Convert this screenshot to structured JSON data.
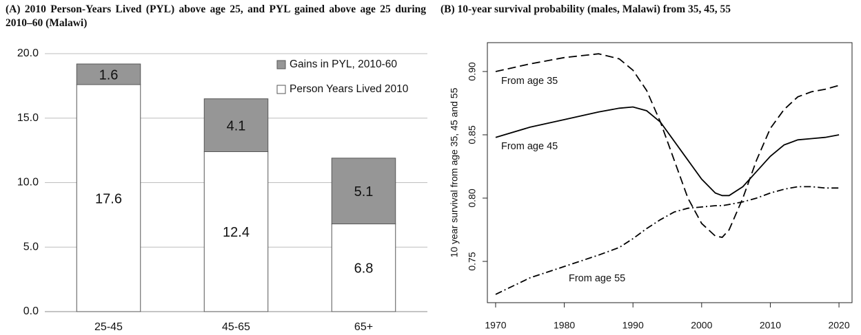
{
  "chart_data": [
    {
      "type": "stacked-bar",
      "title": "(A) 2010 Person-Years Lived (PYL) above age 25, and PYL gained above age 25 during 2010–60 (Malawi)",
      "categories": [
        "25-45",
        "45-65",
        "65+"
      ],
      "series": [
        {
          "name": "Person Years Lived 2010",
          "color": "#ffffff",
          "values": [
            17.6,
            12.4,
            6.8
          ]
        },
        {
          "name": "Gains in PYL, 2010-60",
          "color": "#969696",
          "values": [
            1.6,
            4.1,
            5.1
          ]
        }
      ],
      "ylim": [
        0,
        20
      ],
      "yticks": [
        {
          "value": 0,
          "label": "0.0"
        },
        {
          "value": 5,
          "label": "5.0"
        },
        {
          "value": 10,
          "label": "10.0"
        },
        {
          "value": 15,
          "label": "15.0"
        },
        {
          "value": 20,
          "label": "20.0"
        }
      ],
      "grid": true,
      "legend": "top-right"
    },
    {
      "type": "line",
      "title": "(B) 10-year survival probability (males, Malawi) from 35, 45, 55",
      "y_label": "10 year survival from age 35, 45 and 55",
      "x": [
        1970,
        1975,
        1980,
        1985,
        1988,
        1990,
        1992,
        1994,
        1996,
        1998,
        2000,
        2002,
        2003,
        2004,
        2006,
        2008,
        2010,
        2012,
        2014,
        2016,
        2018,
        2020
      ],
      "series": [
        {
          "name": "From age 35",
          "color": "#000000",
          "dash": "dashed",
          "values": [
            0.9,
            0.906,
            0.911,
            0.914,
            0.91,
            0.901,
            0.885,
            0.86,
            0.83,
            0.8,
            0.78,
            0.77,
            0.769,
            0.775,
            0.8,
            0.83,
            0.855,
            0.87,
            0.88,
            0.884,
            0.886,
            0.889
          ]
        },
        {
          "name": "From age 45",
          "color": "#000000",
          "dash": "solid",
          "values": [
            0.848,
            0.856,
            0.862,
            0.868,
            0.871,
            0.872,
            0.869,
            0.86,
            0.845,
            0.83,
            0.815,
            0.804,
            0.802,
            0.802,
            0.809,
            0.821,
            0.833,
            0.842,
            0.846,
            0.847,
            0.848,
            0.85
          ]
        },
        {
          "name": "From age 55",
          "color": "#000000",
          "dash": "dashdot",
          "values": [
            0.724,
            0.737,
            0.746,
            0.755,
            0.761,
            0.768,
            0.776,
            0.783,
            0.789,
            0.792,
            0.793,
            0.794,
            0.794,
            0.795,
            0.797,
            0.8,
            0.804,
            0.807,
            0.809,
            0.809,
            0.808,
            0.808
          ]
        }
      ],
      "xlim": [
        1968.8,
        2021.9
      ],
      "xticks": [
        1970,
        1980,
        1990,
        2000,
        2010,
        2020
      ],
      "ylim": [
        0.7174,
        0.9228
      ],
      "yticks": [
        0.75,
        {
          "value": 0.8,
          "label": "0.80"
        },
        0.85,
        {
          "value": 0.9,
          "label": "0.90"
        }
      ],
      "grid": false
    }
  ]
}
